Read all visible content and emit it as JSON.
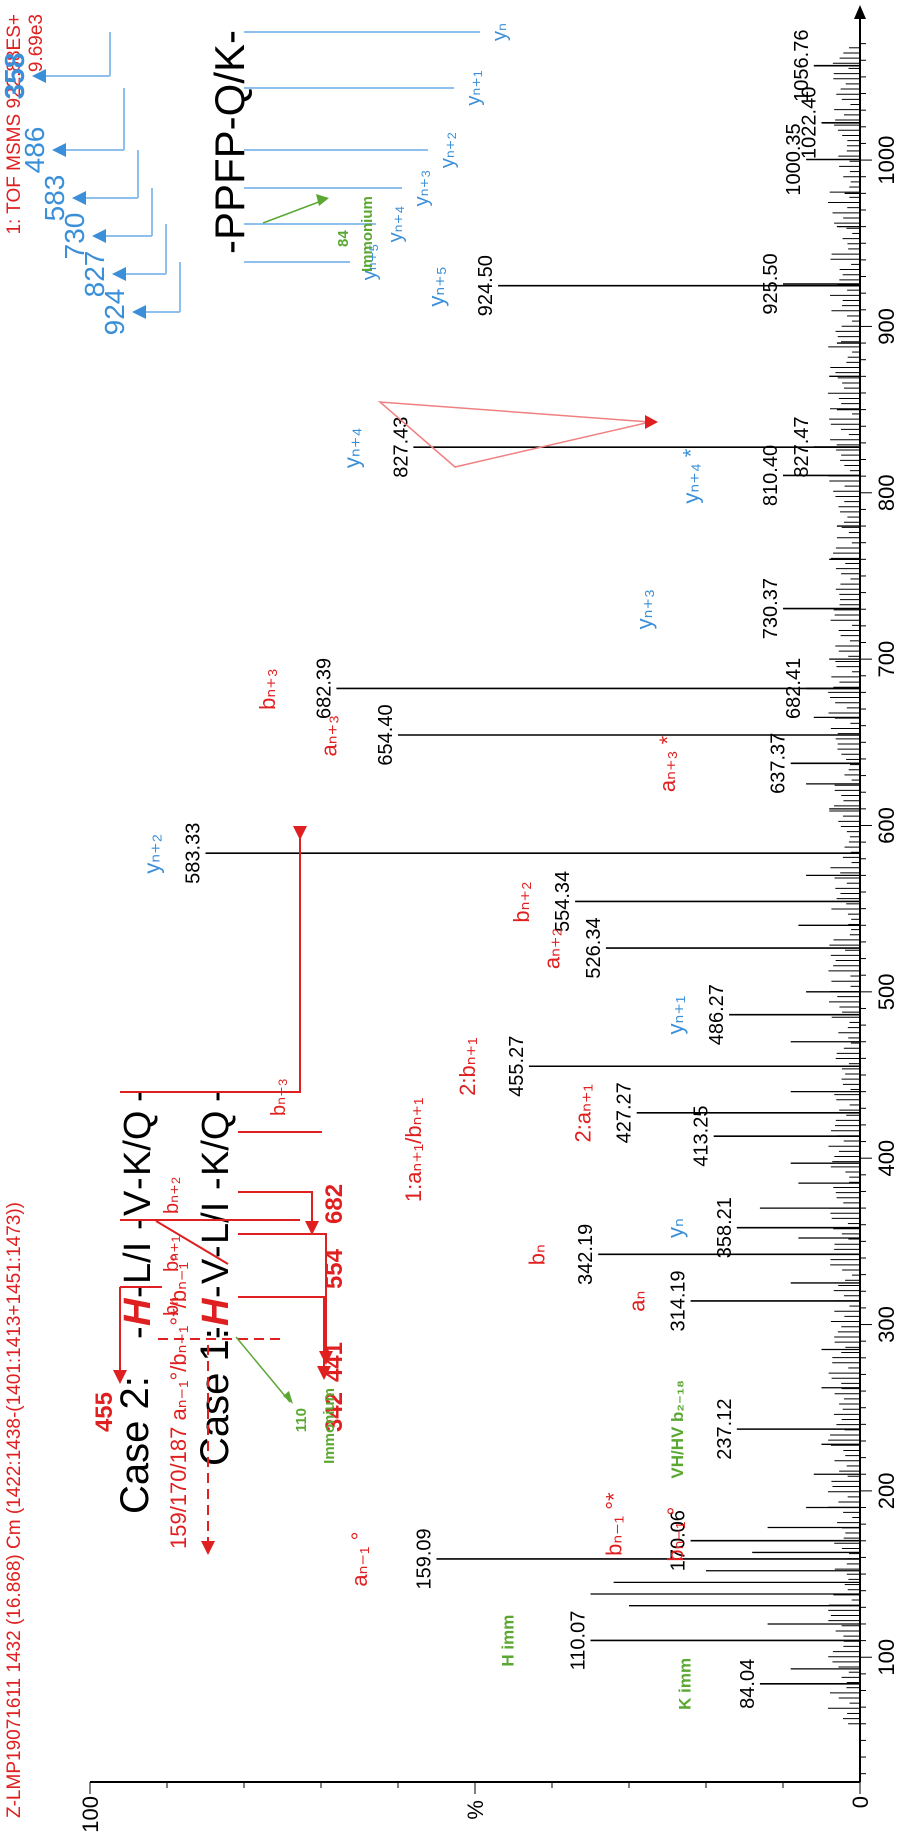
{
  "colors": {
    "black": "#000000",
    "red": "#e02020",
    "blue": "#3a8fd8",
    "green": "#5aa832",
    "red_light": "#f08080",
    "blue_light": "#8ec0ee"
  },
  "header": {
    "sample_line": "Z-LMP19071611 1432 (16.868) Cm (1422:1438-(1401:1413+1451:1473))",
    "scan_line": "1: TOF MSMS 922.88ES+",
    "intensity_line": "9.69e3"
  },
  "chart_data": {
    "type": "bar",
    "title": "",
    "xlabel": "m/z",
    "ylabel": "%",
    "xlim": [
      25,
      1080
    ],
    "ylim": [
      0,
      100
    ],
    "x_ticks": [
      100,
      200,
      300,
      400,
      500,
      600,
      700,
      800,
      900,
      1000
    ],
    "y_ticks": [
      0,
      100
    ],
    "peaks": [
      {
        "mz": 84.04,
        "rel": 13,
        "label": "84.04"
      },
      {
        "mz": 110.07,
        "rel": 35,
        "label": "110.07"
      },
      {
        "mz": 159.09,
        "rel": 55,
        "label": "159.09"
      },
      {
        "mz": 170.06,
        "rel": 22,
        "label": "170.06"
      },
      {
        "mz": 237.12,
        "rel": 16,
        "label": "237.12"
      },
      {
        "mz": 314.19,
        "rel": 22,
        "label": "314.19"
      },
      {
        "mz": 342.19,
        "rel": 34,
        "label": "342.19"
      },
      {
        "mz": 358.21,
        "rel": 16,
        "label": "358.21"
      },
      {
        "mz": 413.25,
        "rel": 19,
        "label": "413.25"
      },
      {
        "mz": 427.27,
        "rel": 29,
        "label": "427.27"
      },
      {
        "mz": 455.27,
        "rel": 43,
        "label": "455.27"
      },
      {
        "mz": 486.27,
        "rel": 17,
        "label": "486.27"
      },
      {
        "mz": 526.34,
        "rel": 33,
        "label": "526.34"
      },
      {
        "mz": 554.34,
        "rel": 37,
        "label": "554.34"
      },
      {
        "mz": 583.33,
        "rel": 85,
        "label": "583.33"
      },
      {
        "mz": 637.37,
        "rel": 9,
        "label": "637.37"
      },
      {
        "mz": 654.4,
        "rel": 60,
        "label": "654.40"
      },
      {
        "mz": 682.39,
        "rel": 68,
        "label": "682.39"
      },
      {
        "mz": 682.41,
        "rel": 7,
        "label": "682.41"
      },
      {
        "mz": 730.37,
        "rel": 10,
        "label": "730.37"
      },
      {
        "mz": 810.4,
        "rel": 10,
        "label": "810.40"
      },
      {
        "mz": 827.43,
        "rel": 58,
        "label": "827.43"
      },
      {
        "mz": 827.47,
        "rel": 6,
        "label": "827.47"
      },
      {
        "mz": 924.5,
        "rel": 47,
        "label": "924.50"
      },
      {
        "mz": 925.5,
        "rel": 10,
        "label": "925.50"
      },
      {
        "mz": 1000.35,
        "rel": 7,
        "label": "1000.35"
      },
      {
        "mz": 1022.4,
        "rel": 5,
        "label": "1022.40"
      },
      {
        "mz": 1056.76,
        "rel": 6,
        "label": "1056.76"
      }
    ],
    "minor_peaks": [
      {
        "mz": 93,
        "rel": 9
      },
      {
        "mz": 120,
        "rel": 12
      },
      {
        "mz": 131,
        "rel": 30
      },
      {
        "mz": 138,
        "rel": 35
      },
      {
        "mz": 145,
        "rel": 32
      },
      {
        "mz": 152,
        "rel": 20
      },
      {
        "mz": 163,
        "rel": 14
      },
      {
        "mz": 178,
        "rel": 12
      },
      {
        "mz": 190,
        "rel": 7
      },
      {
        "mz": 210,
        "rel": 6
      },
      {
        "mz": 228,
        "rel": 5
      },
      {
        "mz": 262,
        "rel": 5
      },
      {
        "mz": 285,
        "rel": 5
      },
      {
        "mz": 325,
        "rel": 9
      },
      {
        "mz": 352,
        "rel": 8
      },
      {
        "mz": 370,
        "rel": 13
      },
      {
        "mz": 385,
        "rel": 8
      },
      {
        "mz": 397,
        "rel": 9
      },
      {
        "mz": 440,
        "rel": 9
      },
      {
        "mz": 470,
        "rel": 9
      },
      {
        "mz": 500,
        "rel": 7
      },
      {
        "mz": 540,
        "rel": 8
      },
      {
        "mz": 570,
        "rel": 7
      },
      {
        "mz": 610,
        "rel": 4
      },
      {
        "mz": 625,
        "rel": 7
      },
      {
        "mz": 665,
        "rel": 6
      },
      {
        "mz": 700,
        "rel": 4
      },
      {
        "mz": 760,
        "rel": 4
      },
      {
        "mz": 780,
        "rel": 3
      },
      {
        "mz": 850,
        "rel": 3
      },
      {
        "mz": 870,
        "rel": 4
      },
      {
        "mz": 890,
        "rel": 3
      },
      {
        "mz": 960,
        "rel": 3
      },
      {
        "mz": 980,
        "rel": 2
      }
    ],
    "ion_annotations": [
      {
        "text": "K imm",
        "mz": 84,
        "rel": 22,
        "color": "green"
      },
      {
        "text": "H imm",
        "mz": 110,
        "rel": 45,
        "color": "green"
      },
      {
        "text": "aₙ₋₁ °",
        "mz": 159,
        "rel": 64,
        "color": "red"
      },
      {
        "text": "bₙ₋₁ °*",
        "mz": 180,
        "rel": 31,
        "color": "red"
      },
      {
        "text": "bₙ₋₁ °",
        "mz": 174,
        "rel": 23,
        "color": "red"
      },
      {
        "text": "VH/HV b₂₋₁₈",
        "mz": 237,
        "rel": 23,
        "color": "green"
      },
      {
        "text": "aₙ",
        "mz": 314,
        "rel": 28,
        "color": "red"
      },
      {
        "text": "bₙ",
        "mz": 342,
        "rel": 41,
        "color": "red"
      },
      {
        "text": "yₙ",
        "mz": 358,
        "rel": 23,
        "color": "blue"
      },
      {
        "text": "1:aₙ₊₁/bₙ₊₁",
        "mz": 405,
        "rel": 57,
        "color": "red"
      },
      {
        "text": "2:aₙ₊₁",
        "mz": 427,
        "rel": 35,
        "color": "red"
      },
      {
        "text": "2:bₙ₊₁",
        "mz": 455,
        "rel": 50,
        "color": "red"
      },
      {
        "text": "yₙ₊₁",
        "mz": 486,
        "rel": 23,
        "color": "blue"
      },
      {
        "text": "aₙ₊₂",
        "mz": 526,
        "rel": 39,
        "color": "red"
      },
      {
        "text": "bₙ₊₂",
        "mz": 554,
        "rel": 43,
        "color": "red"
      },
      {
        "text": "yₙ₊₂",
        "mz": 583,
        "rel": 91,
        "color": "blue"
      },
      {
        "text": "aₙ₊₃ *",
        "mz": 637,
        "rel": 24,
        "color": "red"
      },
      {
        "text": "aₙ₊₃",
        "mz": 654,
        "rel": 68,
        "color": "red"
      },
      {
        "text": "bₙ₊₃",
        "mz": 682,
        "rel": 76,
        "color": "red"
      },
      {
        "text": "yₙ₊₃",
        "mz": 730,
        "rel": 27,
        "color": "blue"
      },
      {
        "text": "yₙ₊₄ *",
        "mz": 810,
        "rel": 21,
        "color": "blue"
      },
      {
        "text": "yₙ₊₄",
        "mz": 827,
        "rel": 65,
        "color": "blue"
      },
      {
        "text": "yₙ₊₅",
        "mz": 924,
        "rel": 54,
        "color": "blue"
      }
    ]
  },
  "case_panel": {
    "case2_label": "Case 2:",
    "case1_label": "Case 1:",
    "seq2": [
      "H",
      "L/I",
      "V",
      "K/Q"
    ],
    "seq1": [
      "H",
      "V",
      "L/I",
      "K/Q"
    ],
    "frag_summary": "159/170/187  aₙ₋₁°/bₙ₋₁°*/bₙ₋₁°",
    "case2_bn": "bₙ",
    "case2_bn1": "bₙ₊₁",
    "case2_bn2": "bₙ₊₂",
    "case2_bn3": "bₙ₊₃",
    "case2_455": "455",
    "case2_554": "554",
    "case2_682": "682",
    "case1_342": "342",
    "case1_441": "441",
    "immonium_value": "110",
    "immonium_label": "Immonium"
  },
  "y_panel": {
    "sequence": "-PPFP-Q/K-",
    "values": [
      "924",
      "827",
      "730",
      "583",
      "486",
      "358"
    ],
    "labels": [
      "yₙ₊₅",
      "yₙ₊₄",
      "yₙ₊₃",
      "yₙ₊₂",
      "yₙ₊₁",
      "yₙ"
    ],
    "immonium_value": "84",
    "immonium_label": "Immonium"
  }
}
